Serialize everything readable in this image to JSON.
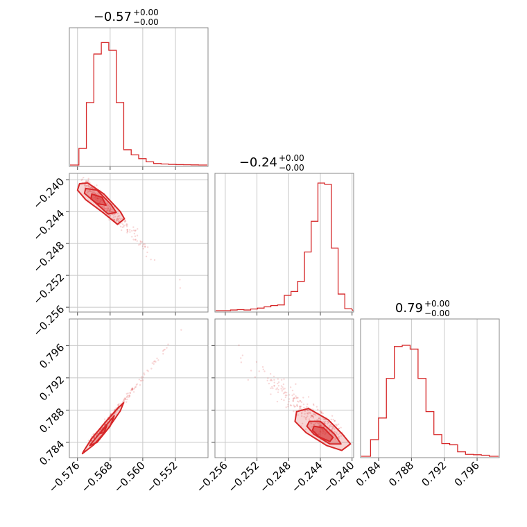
{
  "chart_data": {
    "type": "corner",
    "color": "#d62728",
    "parameters": [
      {
        "title": "−0.57",
        "upper": "+0.00",
        "lower": "−0.00",
        "range": [
          -0.578,
          -0.544
        ],
        "ticks": [
          -0.576,
          -0.568,
          -0.56,
          -0.552
        ],
        "tick_labels": [
          "−0.576",
          "−0.568",
          "−0.560",
          "−0.552"
        ]
      },
      {
        "title": "−0.24",
        "upper": "+0.00",
        "lower": "−0.00",
        "range": [
          -0.2573,
          -0.2398
        ],
        "ticks": [
          -0.256,
          -0.252,
          -0.248,
          -0.244,
          -0.24
        ],
        "tick_labels": [
          "−0.256",
          "−0.252",
          "−0.248",
          "−0.244",
          "−0.240"
        ]
      },
      {
        "title": "0.79",
        "upper": "+0.00",
        "lower": "−0.00",
        "range": [
          0.7818,
          0.7987
        ],
        "ticks": [
          0.784,
          0.788,
          0.792,
          0.796
        ],
        "tick_labels": [
          "0.784",
          "0.788",
          "0.792",
          "0.796"
        ]
      }
    ],
    "histograms": [
      [
        0.0,
        0.13,
        0.49,
        0.87,
        0.96,
        0.9,
        0.49,
        0.12,
        0.08,
        0.05,
        0.025,
        0.012,
        0.008,
        0.005,
        0.003,
        0.002,
        0.001,
        0.0
      ],
      [
        0.0,
        0.0,
        0.005,
        0.008,
        0.005,
        0.013,
        0.02,
        0.03,
        0.04,
        0.045,
        0.12,
        0.15,
        0.23,
        0.46,
        0.7,
        1.0,
        0.99,
        0.49,
        0.13,
        0.015
      ],
      [
        0.0,
        0.13,
        0.3,
        0.61,
        0.86,
        0.87,
        0.84,
        0.61,
        0.35,
        0.17,
        0.1,
        0.09,
        0.035,
        0.015,
        0.012,
        0.008,
        0.0
      ]
    ],
    "joint_axis_ranges": {
      "p0_p1": {
        "x": [
          -0.578,
          -0.544
        ],
        "y": [
          -0.2566,
          -0.2392
        ]
      },
      "p0_p2": {
        "x": [
          -0.578,
          -0.544
        ],
        "y": [
          0.7821,
          0.7993
        ]
      },
      "p1_p2": {
        "x": [
          -0.2573,
          -0.2398
        ],
        "y": [
          0.7821,
          0.7993
        ]
      }
    }
  }
}
